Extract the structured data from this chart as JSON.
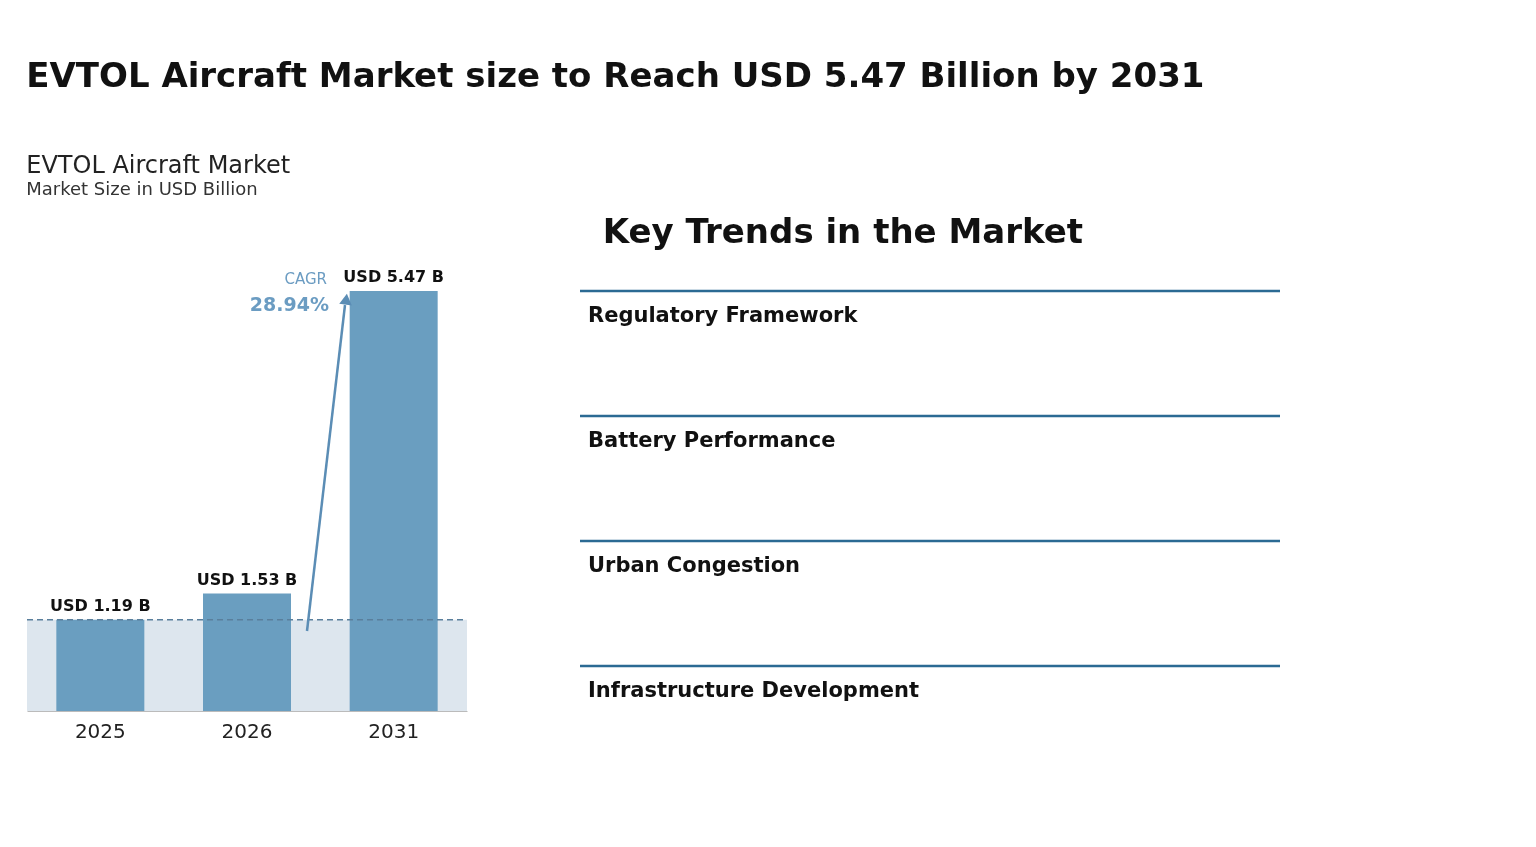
{
  "chart_data": [
    {
      "type": "bar",
      "title": "EVTOL Aircraft Market",
      "subtitle": "Market Size in USD Billion",
      "categories": [
        "2025",
        "2026",
        "2031"
      ],
      "values": [
        1.19,
        1.53,
        5.47
      ],
      "color": "#6a9ec0",
      "value_labels": [
        "USD 1.19 B",
        "USD 1.53 B",
        "USD 5.47 B"
      ],
      "annotations": [
        "EVTOL Aircraft Market size to Reach USD 5.47 Billion by 2031",
        "CAGR",
        "28.94%"
      ],
      "bands": [
        {
          "axis": "y",
          "from": 0,
          "to": 1.19,
          "color": "#dde6ee"
        }
      ],
      "ref_lines": [
        {
          "axis": "y",
          "value": 1.19,
          "color": "#5a7f9c",
          "line_style": "dashed"
        }
      ],
      "grid": false
    },
    {
      "type": "other",
      "title": "Key Trends in the Market",
      "annotations": [
        "Regulatory Framework",
        "Battery Performance",
        "Urban Congestion",
        "Infrastructure Development"
      ]
    }
  ]
}
